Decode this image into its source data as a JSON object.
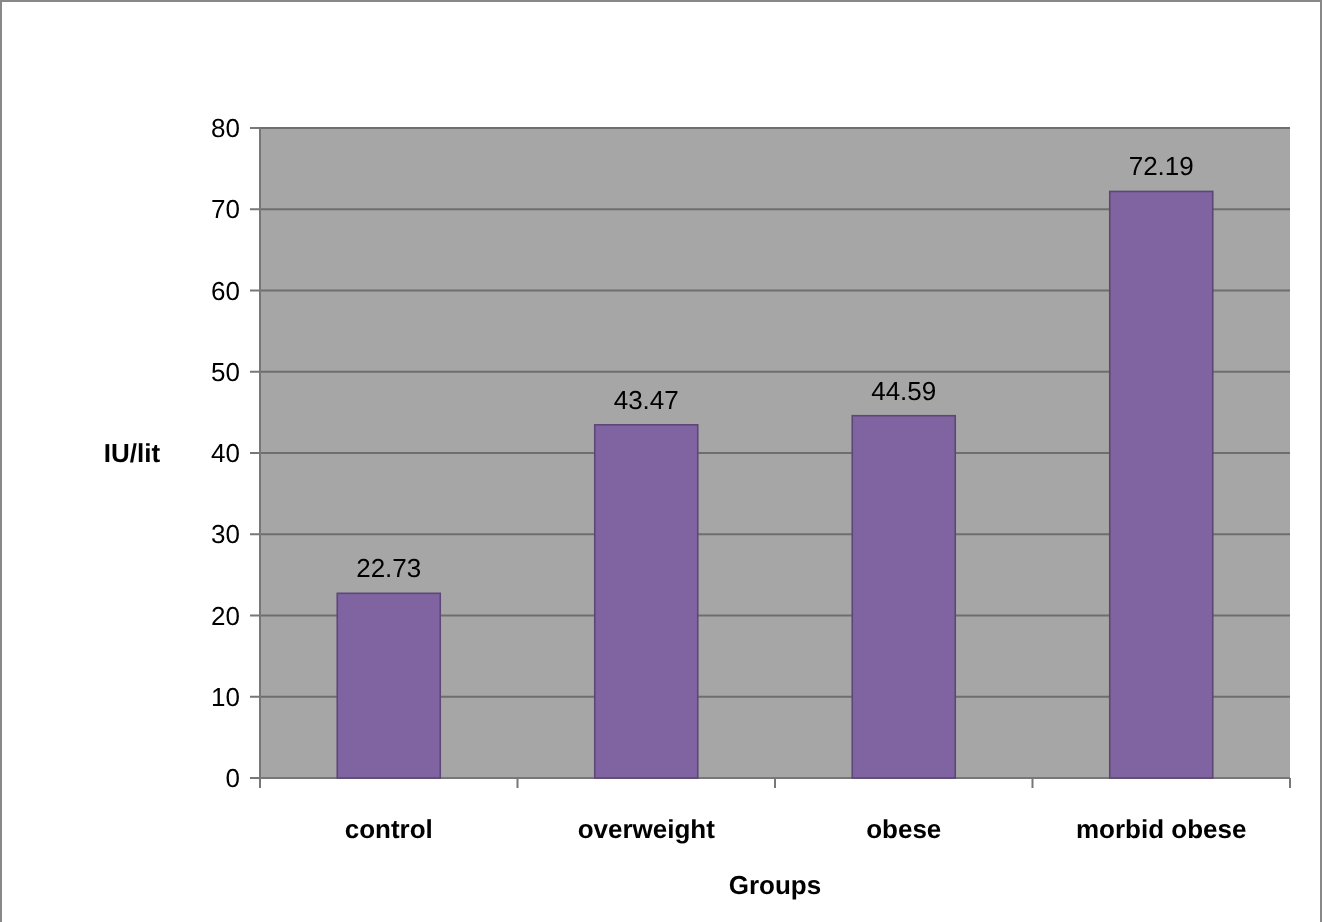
{
  "chart_data": {
    "type": "bar",
    "xlabel": "Groups",
    "ylabel": "IU/lit",
    "categories": [
      "control",
      "overweight",
      "obese",
      "morbid obese"
    ],
    "values": [
      22.73,
      43.47,
      44.59,
      72.19
    ],
    "color": "#8064a2",
    "ylim": [
      0,
      80
    ],
    "yticks": [
      0,
      10,
      20,
      30,
      40,
      50,
      60,
      70,
      80
    ],
    "grid": "y",
    "data_labels": true
  }
}
